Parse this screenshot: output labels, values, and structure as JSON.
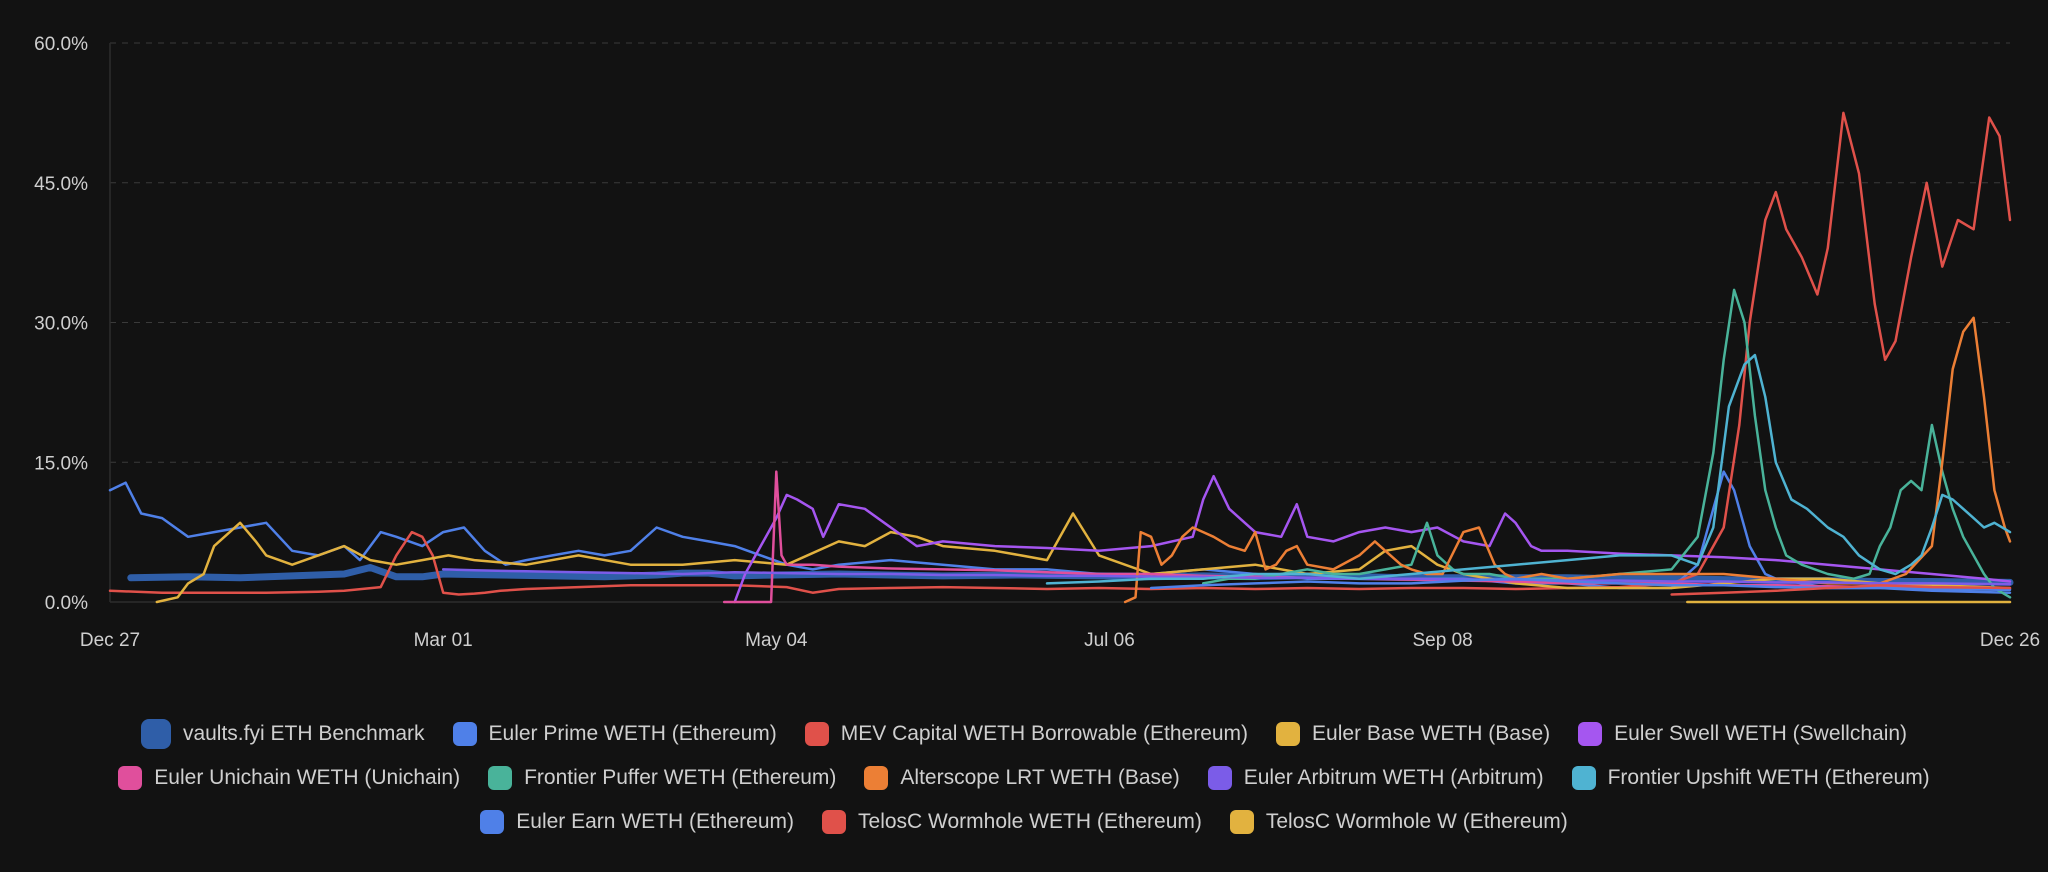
{
  "chart_data": {
    "type": "line",
    "title": "",
    "xlabel": "",
    "ylabel": "",
    "ylim": [
      0,
      60
    ],
    "grid": true,
    "x_ticks": [
      {
        "pos": 0,
        "label": "Dec 27"
      },
      {
        "pos": 64,
        "label": "Mar 01"
      },
      {
        "pos": 128,
        "label": "May 04"
      },
      {
        "pos": 192,
        "label": "Jul 06"
      },
      {
        "pos": 256,
        "label": "Sep 08"
      },
      {
        "pos": 365,
        "label": "Dec 26"
      }
    ],
    "y_ticks": [
      {
        "value": 0,
        "label": "0.0%"
      },
      {
        "value": 15,
        "label": "15.0%"
      },
      {
        "value": 30,
        "label": "30.0%"
      },
      {
        "value": 45,
        "label": "45.0%"
      },
      {
        "value": 60,
        "label": "60.0%"
      }
    ],
    "x_range": [
      0,
      365
    ],
    "legend_position": "bottom",
    "series": [
      {
        "name": "vaults.fyi ETH Benchmark",
        "color": "#2f5ea8",
        "width": 7,
        "x": [
          4,
          15,
          25,
          35,
          45,
          50,
          55,
          60,
          64,
          75,
          85,
          95,
          105,
          110,
          115,
          120,
          128,
          140,
          150,
          160,
          175,
          190,
          200,
          210,
          220,
          230,
          240,
          250,
          260,
          270,
          280,
          290,
          300,
          310,
          320,
          330,
          340,
          350,
          365
        ],
        "y": [
          2.6,
          2.7,
          2.6,
          2.8,
          3.0,
          3.7,
          2.7,
          2.7,
          3.0,
          2.9,
          2.8,
          2.7,
          2.9,
          3.1,
          3.1,
          2.8,
          2.9,
          3.0,
          2.9,
          2.8,
          2.9,
          2.8,
          2.7,
          2.8,
          2.7,
          2.8,
          2.7,
          2.6,
          2.6,
          2.6,
          2.6,
          2.5,
          2.5,
          2.4,
          2.3,
          2.3,
          2.2,
          2.2,
          2.1
        ]
      },
      {
        "name": "Euler Prime WETH (Ethereum)",
        "color": "#4f80e8",
        "width": 2.5,
        "x": [
          0,
          3,
          6,
          10,
          15,
          20,
          25,
          30,
          35,
          40,
          45,
          48,
          52,
          55,
          60,
          64,
          68,
          72,
          76,
          80,
          85,
          90,
          95,
          100,
          105,
          110,
          115,
          120,
          125,
          130,
          135,
          140,
          150,
          160,
          170,
          180,
          190,
          200,
          210,
          220,
          230,
          240,
          250,
          260,
          270,
          280,
          290,
          300,
          305,
          308,
          310,
          312,
          315,
          318,
          320,
          325,
          330,
          340,
          350,
          365
        ],
        "y": [
          12.0,
          12.8,
          9.5,
          9.0,
          7.0,
          7.5,
          8.0,
          8.5,
          5.5,
          5.0,
          6.0,
          4.5,
          7.5,
          7.0,
          6.0,
          7.5,
          8.0,
          5.5,
          4.0,
          4.5,
          5.0,
          5.5,
          5.0,
          5.5,
          8.0,
          7.0,
          6.5,
          6.0,
          5.0,
          4.0,
          3.5,
          4.0,
          4.5,
          4.0,
          3.5,
          3.5,
          3.0,
          3.0,
          3.5,
          3.0,
          2.5,
          2.5,
          2.5,
          2.5,
          2.0,
          2.0,
          1.5,
          1.5,
          4.0,
          10.0,
          14.0,
          12.0,
          6.0,
          3.0,
          2.5,
          2.0,
          1.5,
          1.5,
          1.2,
          1.0
        ]
      },
      {
        "name": "MEV Capital WETH Borrowable (Ethereum)",
        "color": "#e0514a",
        "width": 2.5,
        "x": [
          0,
          10,
          20,
          30,
          40,
          45,
          52,
          55,
          58,
          60,
          62,
          64,
          67,
          70,
          72,
          75,
          80,
          90,
          100,
          110,
          120,
          130,
          135,
          140,
          150,
          160,
          170,
          180,
          190,
          200,
          210,
          220,
          230,
          240,
          250,
          260,
          270,
          280,
          290,
          300,
          305,
          310,
          313,
          315,
          318,
          320,
          322,
          325,
          328,
          330,
          333,
          336,
          339,
          341,
          343,
          346,
          349,
          352,
          355,
          358,
          361,
          363,
          365
        ],
        "y": [
          1.2,
          1.0,
          1.0,
          1.0,
          1.1,
          1.2,
          1.6,
          5.0,
          7.5,
          7.0,
          5.0,
          1.0,
          0.8,
          0.9,
          1.0,
          1.2,
          1.4,
          1.6,
          1.8,
          1.8,
          1.8,
          1.6,
          1.0,
          1.4,
          1.5,
          1.6,
          1.5,
          1.4,
          1.5,
          1.4,
          1.5,
          1.4,
          1.5,
          1.4,
          1.5,
          1.5,
          1.4,
          1.5,
          1.6,
          2.0,
          3.0,
          8.0,
          19.0,
          30.0,
          41.0,
          44.0,
          40.0,
          37.0,
          33.0,
          38.0,
          52.5,
          46.0,
          32.0,
          26.0,
          28.0,
          37.0,
          45.0,
          36.0,
          41.0,
          40.0,
          52.0,
          50.0,
          41.0
        ]
      },
      {
        "name": "Euler Base WETH (Base)",
        "color": "#e2b23f",
        "width": 2.5,
        "x": [
          9,
          13,
          15,
          18,
          20,
          25,
          28,
          30,
          35,
          40,
          45,
          50,
          55,
          60,
          65,
          70,
          80,
          90,
          100,
          110,
          120,
          130,
          140,
          145,
          150,
          155,
          160,
          170,
          175,
          180,
          185,
          190,
          200,
          210,
          220,
          230,
          240,
          245,
          250,
          255,
          260,
          270,
          280,
          290,
          300,
          310,
          320,
          330,
          340,
          350,
          365
        ],
        "y": [
          0.0,
          0.5,
          2.0,
          3.0,
          6.0,
          8.5,
          6.5,
          5.0,
          4.0,
          5.0,
          6.0,
          4.5,
          4.0,
          4.5,
          5.0,
          4.5,
          4.0,
          5.0,
          4.0,
          4.0,
          4.5,
          4.0,
          6.5,
          6.0,
          7.5,
          7.0,
          6.0,
          5.5,
          5.0,
          4.5,
          9.5,
          5.0,
          3.0,
          3.5,
          4.0,
          3.0,
          3.5,
          5.5,
          6.0,
          4.0,
          3.0,
          2.0,
          1.5,
          1.5,
          1.5,
          2.0,
          2.5,
          2.5,
          2.0,
          1.8,
          1.5
        ]
      },
      {
        "name": "Euler Swell WETH (Swellchain)",
        "color": "#a556f0",
        "width": 2.5,
        "x": [
          120,
          122,
          125,
          128,
          130,
          132,
          135,
          137,
          140,
          145,
          150,
          155,
          160,
          170,
          180,
          190,
          200,
          208,
          210,
          212,
          215,
          218,
          220,
          225,
          228,
          230,
          235,
          240,
          245,
          250,
          255,
          260,
          265,
          268,
          270,
          273,
          275,
          278,
          280,
          290,
          300,
          310,
          320,
          330,
          340,
          350,
          360,
          365
        ],
        "y": [
          0.0,
          3.0,
          6.0,
          9.0,
          11.5,
          11.0,
          10.0,
          7.0,
          10.5,
          10.0,
          8.0,
          6.0,
          6.5,
          6.0,
          5.8,
          5.5,
          6.0,
          7.0,
          11.0,
          13.5,
          10.0,
          8.5,
          7.5,
          7.0,
          10.5,
          7.0,
          6.5,
          7.5,
          8.0,
          7.5,
          8.0,
          6.5,
          6.0,
          9.5,
          8.5,
          6.0,
          5.5,
          5.5,
          5.5,
          5.2,
          5.0,
          4.8,
          4.5,
          4.0,
          3.5,
          3.0,
          2.5,
          2.2
        ]
      },
      {
        "name": "Euler Unichain WETH (Unichain)",
        "color": "#e04f9c",
        "width": 2.5,
        "x": [
          118,
          127,
          128,
          129,
          130,
          135,
          140,
          150,
          160,
          170,
          180,
          190,
          200,
          210,
          220,
          230,
          240,
          250,
          260,
          270,
          280,
          290,
          300,
          310,
          320,
          330,
          340,
          350,
          365
        ],
        "y": [
          0.0,
          0.0,
          14.0,
          5.0,
          4.0,
          4.0,
          3.8,
          3.6,
          3.5,
          3.4,
          3.2,
          3.0,
          3.0,
          2.8,
          2.7,
          2.6,
          2.5,
          2.4,
          2.3,
          2.2,
          2.0,
          2.0,
          2.0,
          1.8,
          1.8,
          1.7,
          1.6,
          1.5,
          1.4
        ]
      },
      {
        "name": "Frontier Puffer WETH (Ethereum)",
        "color": "#49b39a",
        "width": 2.5,
        "x": [
          210,
          215,
          220,
          225,
          230,
          235,
          240,
          245,
          250,
          253,
          255,
          258,
          260,
          265,
          270,
          280,
          290,
          300,
          305,
          308,
          310,
          312,
          314,
          316,
          318,
          320,
          322,
          325,
          330,
          335,
          338,
          340,
          342,
          344,
          346,
          348,
          350,
          352,
          354,
          356,
          358,
          360,
          362,
          365
        ],
        "y": [
          2.0,
          2.5,
          2.5,
          3.0,
          3.5,
          3.0,
          3.0,
          3.5,
          4.0,
          8.5,
          5.0,
          3.5,
          3.0,
          3.0,
          2.5,
          2.5,
          3.0,
          3.5,
          7.0,
          16.0,
          26.0,
          33.5,
          30.0,
          20.0,
          12.0,
          8.0,
          5.0,
          4.0,
          3.0,
          2.5,
          3.0,
          6.0,
          8.0,
          12.0,
          13.0,
          12.0,
          19.0,
          14.0,
          10.0,
          7.0,
          5.0,
          3.0,
          1.5,
          0.5
        ]
      },
      {
        "name": "Alterscope LRT WETH (Base)",
        "color": "#ec7f35",
        "width": 2.5,
        "x": [
          195,
          197,
          198,
          200,
          202,
          204,
          206,
          208,
          210,
          212,
          215,
          218,
          220,
          222,
          224,
          226,
          228,
          230,
          235,
          240,
          243,
          245,
          248,
          250,
          253,
          256,
          260,
          263,
          266,
          268,
          270,
          275,
          280,
          290,
          300,
          310,
          320,
          330,
          340,
          345,
          350,
          352,
          354,
          356,
          358,
          360,
          362,
          364,
          365
        ],
        "y": [
          0.0,
          0.5,
          7.5,
          7.0,
          4.0,
          5.0,
          7.0,
          8.0,
          7.5,
          7.0,
          6.0,
          5.5,
          7.5,
          3.5,
          4.0,
          5.5,
          6.0,
          4.0,
          3.5,
          5.0,
          6.5,
          5.5,
          4.0,
          3.5,
          3.0,
          3.0,
          7.5,
          8.0,
          4.0,
          3.0,
          2.5,
          3.0,
          2.5,
          3.0,
          3.0,
          3.0,
          2.5,
          2.0,
          2.0,
          3.0,
          6.0,
          15.0,
          25.0,
          29.0,
          30.5,
          22.0,
          12.0,
          8.0,
          6.5
        ]
      },
      {
        "name": "Euler Arbitrum WETH (Arbitrum)",
        "color": "#7b5ce8",
        "width": 2.5,
        "x": [
          64,
          70,
          80,
          90,
          100,
          110,
          120,
          130,
          140,
          150,
          160,
          170,
          180,
          190,
          200,
          210,
          220,
          230,
          240,
          250,
          260,
          270,
          280,
          290,
          300,
          310,
          320,
          330,
          340,
          350,
          365
        ],
        "y": [
          3.5,
          3.4,
          3.3,
          3.2,
          3.1,
          3.0,
          3.2,
          3.1,
          3.0,
          3.0,
          2.9,
          2.9,
          2.8,
          2.8,
          2.7,
          2.7,
          2.6,
          2.6,
          2.5,
          2.5,
          2.4,
          2.4,
          2.3,
          2.3,
          2.2,
          2.2,
          2.1,
          2.1,
          2.0,
          2.0,
          1.9
        ]
      },
      {
        "name": "Frontier Upshift WETH (Ethereum)",
        "color": "#4fb3d2",
        "width": 2.5,
        "x": [
          180,
          190,
          200,
          210,
          220,
          230,
          240,
          250,
          260,
          270,
          280,
          290,
          300,
          305,
          308,
          311,
          314,
          316,
          318,
          320,
          323,
          326,
          330,
          333,
          336,
          340,
          343,
          346,
          348,
          350,
          352,
          354,
          356,
          358,
          360,
          362,
          365
        ],
        "y": [
          2.0,
          2.2,
          2.5,
          2.5,
          3.0,
          3.0,
          2.5,
          3.0,
          3.5,
          4.0,
          4.5,
          5.0,
          5.0,
          4.0,
          8.0,
          21.0,
          25.5,
          26.5,
          22.0,
          15.0,
          11.0,
          10.0,
          8.0,
          7.0,
          5.0,
          3.5,
          3.0,
          4.0,
          5.0,
          8.0,
          11.5,
          11.0,
          10.0,
          9.0,
          8.0,
          8.5,
          7.5
        ]
      },
      {
        "name": "Euler Earn WETH (Ethereum)",
        "color": "#4f80e8",
        "width": 2.5,
        "x": [
          200,
          210,
          220,
          230,
          240,
          250,
          260,
          270,
          280,
          290,
          300,
          310,
          320,
          330,
          340,
          350,
          365
        ],
        "y": [
          1.5,
          1.8,
          2.0,
          2.2,
          2.0,
          2.0,
          2.3,
          2.5,
          2.2,
          2.0,
          1.8,
          1.8,
          1.6,
          1.5,
          1.5,
          1.4,
          1.3
        ]
      },
      {
        "name": "TelosC Wormhole WETH (Ethereum)",
        "color": "#e0514a",
        "width": 2.5,
        "x": [
          300,
          310,
          320,
          330,
          340,
          350,
          365
        ],
        "y": [
          0.8,
          1.0,
          1.2,
          1.5,
          1.8,
          1.6,
          1.5
        ]
      },
      {
        "name": "TelosC Wormhole W (Ethereum)",
        "color": "#e2b23f",
        "width": 2.5,
        "x": [
          303,
          365
        ],
        "y": [
          0.0,
          0.0
        ]
      }
    ]
  },
  "legend_rows": [
    [
      0,
      1,
      2,
      3,
      4
    ],
    [
      5,
      6,
      7,
      8,
      9
    ],
    [
      10,
      11,
      12
    ]
  ]
}
